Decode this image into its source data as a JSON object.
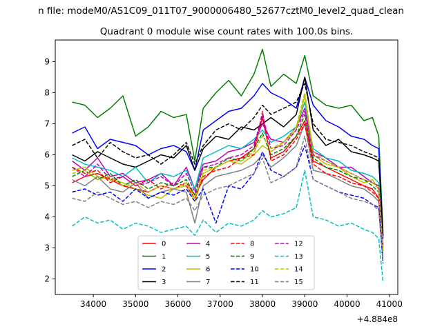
{
  "suptitle": "n file: modeM0/AS1C09_011T07_9000006480_52677cztM0_level2_quad_clean",
  "chart_data": {
    "type": "line",
    "title": "Quadrant 0 module wise count rates with 100.0s bins.",
    "xlabel": "",
    "ylabel": "",
    "x_offset_label": "+4.884e8",
    "xlim": [
      33100,
      41200
    ],
    "ylim": [
      1.5,
      9.7
    ],
    "x_ticks": [
      34000,
      35000,
      36000,
      37000,
      38000,
      39000,
      40000,
      41000
    ],
    "y_ticks": [
      2,
      3,
      4,
      5,
      6,
      7,
      8,
      9
    ],
    "grid": false,
    "legend_position": "lower-center",
    "x": [
      33500,
      33800,
      34100,
      34400,
      34700,
      35000,
      35300,
      35600,
      35900,
      36200,
      36400,
      36600,
      36900,
      37200,
      37500,
      37800,
      38000,
      38200,
      38500,
      38800,
      39000,
      39200,
      39500,
      39800,
      40100,
      40400,
      40600,
      40750,
      40850
    ],
    "series": [
      {
        "name": "0",
        "color": "#ff0000",
        "dash": "solid",
        "values": [
          5.1,
          5.3,
          5.4,
          5.2,
          5.0,
          4.9,
          4.8,
          5.0,
          4.9,
          5.1,
          4.7,
          5.2,
          5.6,
          5.8,
          5.9,
          6.2,
          7.2,
          5.9,
          6.1,
          6.6,
          7.1,
          5.8,
          5.6,
          5.4,
          5.2,
          5.0,
          4.9,
          4.6,
          3.1
        ]
      },
      {
        "name": "1",
        "color": "#008000",
        "dash": "solid",
        "values": [
          7.7,
          7.6,
          7.2,
          7.5,
          7.9,
          6.6,
          6.9,
          7.4,
          7.2,
          7.3,
          5.8,
          7.5,
          8.0,
          8.4,
          7.9,
          8.6,
          9.4,
          8.2,
          8.6,
          8.3,
          9.2,
          7.9,
          7.6,
          7.5,
          7.6,
          7.1,
          7.2,
          6.6,
          3.5
        ]
      },
      {
        "name": "2",
        "color": "#0000ff",
        "dash": "solid",
        "values": [
          6.7,
          6.9,
          6.2,
          6.5,
          6.4,
          6.3,
          6.0,
          6.2,
          6.3,
          6.1,
          5.5,
          6.8,
          7.1,
          7.4,
          7.5,
          7.9,
          8.3,
          8.0,
          7.8,
          7.5,
          8.5,
          7.6,
          7.1,
          6.9,
          6.6,
          6.5,
          6.3,
          6.2,
          3.3
        ]
      },
      {
        "name": "3",
        "color": "#000000",
        "dash": "solid",
        "values": [
          6.0,
          5.8,
          6.1,
          5.9,
          5.7,
          5.6,
          5.8,
          6.0,
          5.9,
          6.3,
          5.5,
          6.2,
          6.6,
          6.5,
          6.9,
          6.8,
          7.0,
          7.2,
          6.9,
          7.3,
          8.5,
          6.8,
          6.3,
          6.5,
          6.1,
          6.0,
          5.9,
          5.8,
          3.4
        ]
      },
      {
        "name": "4",
        "color": "#bf00bf",
        "dash": "solid",
        "values": [
          5.8,
          5.5,
          5.9,
          5.3,
          5.4,
          5.1,
          5.2,
          5.4,
          5.0,
          5.6,
          4.9,
          5.7,
          5.8,
          6.1,
          6.2,
          6.4,
          7.0,
          6.5,
          6.4,
          6.9,
          7.5,
          6.1,
          5.9,
          5.6,
          5.6,
          5.3,
          5.1,
          5.0,
          2.9
        ]
      },
      {
        "name": "5",
        "color": "#00bfbf",
        "dash": "solid",
        "values": [
          5.9,
          5.7,
          5.6,
          5.5,
          5.3,
          5.6,
          5.1,
          5.4,
          5.3,
          5.5,
          4.9,
          5.9,
          6.1,
          6.3,
          6.2,
          6.5,
          6.8,
          6.4,
          6.6,
          6.9,
          7.7,
          6.2,
          5.9,
          5.8,
          5.5,
          5.4,
          5.3,
          5.1,
          3.0
        ]
      },
      {
        "name": "6",
        "color": "#bfbf00",
        "dash": "solid",
        "values": [
          5.5,
          5.6,
          5.3,
          5.2,
          5.1,
          4.9,
          4.7,
          4.6,
          4.9,
          5.0,
          4.5,
          5.4,
          5.6,
          5.8,
          5.7,
          6.0,
          6.3,
          6.1,
          6.4,
          6.8,
          7.9,
          6.0,
          5.7,
          5.6,
          5.3,
          5.1,
          5.2,
          4.9,
          2.9
        ]
      },
      {
        "name": "7",
        "color": "#808080",
        "dash": "solid",
        "values": [
          5.2,
          5.0,
          5.3,
          4.9,
          4.8,
          5.1,
          4.6,
          4.8,
          4.9,
          4.8,
          3.8,
          5.0,
          5.3,
          5.4,
          5.5,
          5.7,
          6.0,
          5.6,
          5.9,
          6.3,
          7.0,
          5.5,
          5.4,
          5.2,
          5.0,
          4.9,
          4.7,
          4.5,
          2.7
        ]
      },
      {
        "name": "8",
        "color": "#ff0000",
        "dash": "dashed",
        "values": [
          5.6,
          5.4,
          5.5,
          5.1,
          5.3,
          5.0,
          5.2,
          4.9,
          5.1,
          5.0,
          4.6,
          5.3,
          5.5,
          5.6,
          5.9,
          6.0,
          7.4,
          5.8,
          6.0,
          6.5,
          7.0,
          5.7,
          5.4,
          5.3,
          5.1,
          5.0,
          4.8,
          4.6,
          3.0
        ]
      },
      {
        "name": "9",
        "color": "#008000",
        "dash": "dashed",
        "values": [
          5.3,
          5.5,
          5.2,
          5.4,
          5.0,
          5.2,
          4.9,
          5.1,
          5.0,
          5.2,
          4.7,
          5.6,
          5.6,
          5.9,
          5.8,
          6.2,
          6.7,
          6.0,
          6.2,
          6.6,
          7.3,
          5.9,
          5.6,
          5.5,
          5.3,
          5.2,
          5.0,
          4.8,
          3.1
        ]
      },
      {
        "name": "10",
        "color": "#0000ff",
        "dash": "dashed",
        "values": [
          4.8,
          4.9,
          4.7,
          4.8,
          4.5,
          4.9,
          4.6,
          4.8,
          4.7,
          4.9,
          4.5,
          4.9,
          3.8,
          5.0,
          4.9,
          5.4,
          6.1,
          5.5,
          5.3,
          5.6,
          6.3,
          5.2,
          5.0,
          4.8,
          4.7,
          4.6,
          4.4,
          4.3,
          2.5
        ]
      },
      {
        "name": "11",
        "color": "#000000",
        "dash": "dashed",
        "values": [
          6.3,
          6.5,
          5.9,
          6.4,
          6.1,
          5.9,
          6.0,
          5.7,
          6.0,
          6.4,
          5.7,
          6.3,
          6.8,
          7.0,
          6.8,
          7.2,
          7.6,
          7.3,
          7.5,
          7.7,
          8.3,
          7.0,
          6.5,
          6.4,
          6.3,
          6.1,
          6.0,
          5.9,
          3.4
        ]
      },
      {
        "name": "12",
        "color": "#bf00bf",
        "dash": "dashed",
        "values": [
          5.6,
          5.3,
          5.7,
          5.2,
          5.3,
          5.0,
          5.1,
          5.3,
          5.0,
          5.4,
          4.8,
          5.6,
          5.7,
          5.9,
          6.0,
          6.3,
          7.3,
          6.2,
          6.3,
          6.8,
          7.4,
          6.0,
          5.8,
          5.6,
          5.4,
          5.2,
          5.1,
          5.0,
          3.0
        ]
      },
      {
        "name": "13",
        "color": "#00bfbf",
        "dash": "dashed",
        "values": [
          3.7,
          4.0,
          3.8,
          3.9,
          3.6,
          3.8,
          3.7,
          3.5,
          3.6,
          3.7,
          3.4,
          3.9,
          3.5,
          3.8,
          3.7,
          3.9,
          4.2,
          4.0,
          4.1,
          4.3,
          5.5,
          4.0,
          3.9,
          3.7,
          3.8,
          3.6,
          3.5,
          3.3,
          1.9
        ]
      },
      {
        "name": "14",
        "color": "#bfbf00",
        "dash": "dashed",
        "values": [
          5.4,
          5.5,
          5.2,
          5.3,
          5.0,
          5.1,
          4.8,
          5.0,
          4.9,
          5.1,
          4.6,
          5.5,
          5.6,
          5.8,
          5.8,
          6.1,
          6.6,
          6.2,
          6.4,
          6.9,
          8.0,
          6.1,
          5.8,
          5.6,
          5.4,
          5.2,
          5.1,
          4.9,
          3.0
        ]
      },
      {
        "name": "15",
        "color": "#808080",
        "dash": "dashed",
        "values": [
          4.6,
          4.5,
          4.8,
          4.6,
          4.4,
          4.5,
          4.3,
          4.5,
          4.4,
          4.6,
          4.2,
          4.7,
          4.9,
          5.0,
          5.2,
          5.4,
          5.9,
          5.1,
          5.3,
          5.6,
          6.6,
          5.2,
          5.0,
          4.8,
          4.6,
          4.5,
          4.4,
          4.2,
          2.6
        ]
      }
    ]
  }
}
